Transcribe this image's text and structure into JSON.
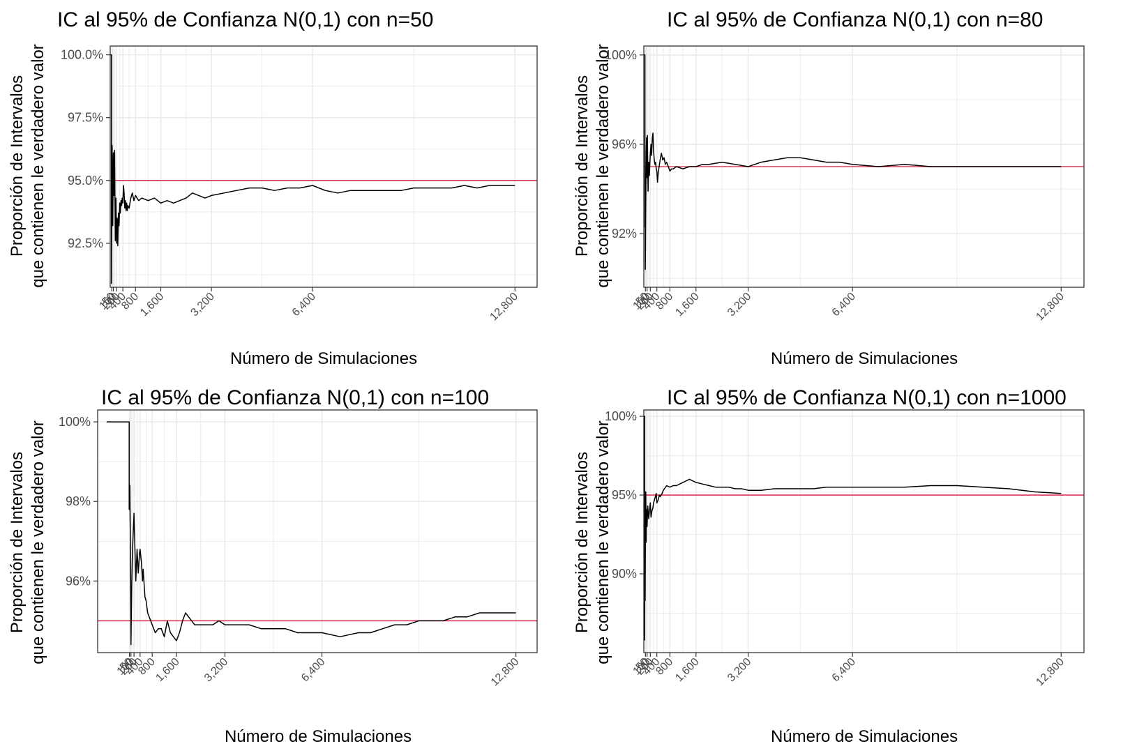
{
  "colors": {
    "line": "#000000",
    "reference": "#E0385C",
    "grid": "#ebebeb",
    "border": "#333333"
  },
  "chart_data": [
    {
      "type": "line",
      "title": "IC al 95% de Confianza N(0,1) con n=50",
      "xlabel": "Número de Simulaciones",
      "ylabel_lines": [
        "Proporción de Intervalos",
        "que contienen le verdadero valor"
      ],
      "xlim": [
        0,
        13500
      ],
      "ylim": [
        90.75,
        100.35
      ],
      "y_ticks": [
        92.5,
        95.0,
        97.5,
        100.0
      ],
      "y_tick_labels": [
        "92.5%",
        "95.0%",
        "97.5%",
        "100.0%"
      ],
      "x_ticks": [
        50,
        100,
        200,
        400,
        800,
        1600,
        3200,
        6400,
        12800
      ],
      "x_tick_labels": [
        "50",
        "100",
        "200",
        "400",
        "800",
        "1,600",
        "3,200",
        "6,400",
        "12,800"
      ],
      "reference_y": 95.0,
      "grid": true,
      "series": [
        {
          "x": [
            1,
            20,
            40,
            40,
            60,
            80,
            100,
            120,
            140,
            160,
            180,
            200,
            220,
            240,
            260,
            280,
            300,
            320,
            340,
            360,
            380,
            400,
            420,
            440,
            460,
            480,
            500,
            520,
            540,
            560,
            600,
            650,
            700,
            750,
            800,
            850,
            900,
            1000,
            1200,
            1400,
            1600,
            1800,
            2000,
            2200,
            2400,
            2600,
            2800,
            3000,
            3200,
            3600,
            4000,
            4400,
            4800,
            5200,
            5600,
            6000,
            6400,
            6800,
            7200,
            7600,
            8000,
            8400,
            8800,
            9200,
            9600,
            10000,
            10400,
            10800,
            11200,
            11600,
            12000,
            12400,
            12800
          ],
          "y": [
            100,
            100,
            100,
            90.9,
            96.4,
            93.2,
            96.1,
            94.4,
            96.2,
            92.6,
            94.3,
            92.5,
            93.5,
            92.4,
            93.7,
            93.2,
            94.1,
            93.7,
            94.2,
            94.0,
            94.3,
            94.1,
            94.8,
            94.5,
            93.9,
            94.2,
            93.8,
            94.1,
            93.8,
            94.0,
            93.9,
            94.3,
            94.5,
            94.2,
            94.4,
            94.3,
            94.2,
            94.3,
            94.2,
            94.3,
            94.1,
            94.2,
            94.1,
            94.2,
            94.3,
            94.5,
            94.4,
            94.3,
            94.4,
            94.5,
            94.6,
            94.7,
            94.7,
            94.6,
            94.7,
            94.7,
            94.8,
            94.6,
            94.5,
            94.6,
            94.6,
            94.6,
            94.6,
            94.6,
            94.7,
            94.7,
            94.7,
            94.7,
            94.8,
            94.7,
            94.8,
            94.8,
            94.8
          ]
        }
      ]
    },
    {
      "type": "line",
      "title": "IC al 95% de Confianza N(0,1) con n=80",
      "xlabel": "Número de Simulaciones",
      "ylabel_lines": [
        "Proporción de Intervalos",
        "que contienen le verdadero valor"
      ],
      "xlim": [
        0,
        13500
      ],
      "ylim": [
        89.6,
        100.4
      ],
      "y_ticks": [
        92,
        96,
        100
      ],
      "y_tick_labels": [
        "92%",
        "96%",
        "100%"
      ],
      "x_ticks": [
        50,
        100,
        200,
        400,
        800,
        1600,
        3200,
        6400,
        12800
      ],
      "x_tick_labels": [
        "50",
        "100",
        "200",
        "400",
        "800",
        "1,600",
        "3,200",
        "6,400",
        "12,800"
      ],
      "reference_y": 95.0,
      "grid": true,
      "series": [
        {
          "x": [
            1,
            20,
            35,
            35,
            40,
            45,
            60,
            75,
            85,
            100,
            110,
            120,
            130,
            150,
            170,
            200,
            220,
            240,
            260,
            280,
            300,
            320,
            340,
            360,
            380,
            400,
            420,
            440,
            460,
            480,
            500,
            540,
            580,
            620,
            660,
            700,
            750,
            800,
            850,
            900,
            1000,
            1200,
            1400,
            1600,
            1800,
            2000,
            2400,
            2800,
            3200,
            3600,
            4000,
            4400,
            4800,
            5200,
            5600,
            6000,
            6400,
            7200,
            8000,
            8800,
            9600,
            10400,
            11200,
            12000,
            12800
          ],
          "y": [
            100,
            100,
            100,
            92.3,
            94.0,
            90.4,
            93.5,
            95.8,
            96.3,
            94.5,
            96.4,
            95.0,
            93.9,
            95.2,
            94.6,
            95.6,
            96.0,
            95.5,
            96.3,
            96.5,
            95.7,
            95.3,
            95.1,
            95.2,
            94.9,
            94.8,
            94.3,
            94.7,
            94.9,
            95.1,
            95.3,
            95.6,
            95.3,
            95.4,
            95.1,
            95.2,
            95.0,
            94.8,
            94.9,
            94.9,
            95.0,
            94.9,
            95.0,
            95.0,
            95.1,
            95.1,
            95.2,
            95.1,
            95.0,
            95.2,
            95.3,
            95.4,
            95.4,
            95.3,
            95.2,
            95.2,
            95.1,
            95.0,
            95.1,
            95.0,
            95.0,
            95.0,
            95.0,
            95.0,
            95.0
          ]
        }
      ]
    },
    {
      "type": "line",
      "title": "IC al 95% de Confianza N(0,1) con n=100",
      "xlabel": "Número de Simulaciones",
      "ylabel_lines": [
        "Proporción de Intervalos",
        "que contienen le verdadero valor"
      ],
      "xlim": [
        -1000,
        13500
      ],
      "ylim": [
        94.2,
        100.3
      ],
      "y_ticks": [
        96,
        98,
        100
      ],
      "y_tick_labels": [
        "96%",
        "98%",
        "100%"
      ],
      "x_ticks": [
        50,
        100,
        200,
        400,
        800,
        1600,
        3200,
        6400,
        12800
      ],
      "x_tick_labels": [
        "50",
        "100",
        "200",
        "400",
        "800",
        "1,600",
        "3,200",
        "6,400",
        "12,800"
      ],
      "reference_y": 95.0,
      "grid": true,
      "series": [
        {
          "x": [
            -700,
            -500,
            -300,
            -100,
            0,
            20,
            40,
            40,
            60,
            80,
            100,
            120,
            150,
            200,
            260,
            300,
            340,
            380,
            400,
            440,
            480,
            500,
            560,
            600,
            650,
            700,
            800,
            900,
            1000,
            1100,
            1200,
            1300,
            1400,
            1500,
            1600,
            1700,
            1800,
            1900,
            2000,
            2100,
            2200,
            2400,
            2600,
            2800,
            3000,
            3200,
            3600,
            4000,
            4400,
            4800,
            5200,
            5600,
            6000,
            6400,
            7000,
            7600,
            8000,
            8400,
            8800,
            9200,
            9600,
            10000,
            10400,
            10800,
            11200,
            11600,
            12000,
            12400,
            12800
          ],
          "y": [
            100,
            100,
            100,
            100,
            100,
            100,
            100,
            97.8,
            98.4,
            97.0,
            94.4,
            95.8,
            96.8,
            97.7,
            96.0,
            96.8,
            96.2,
            96.7,
            96.8,
            96.5,
            96.0,
            96.3,
            95.6,
            95.5,
            95.2,
            95.1,
            94.9,
            94.7,
            94.8,
            94.8,
            94.6,
            95.0,
            94.7,
            94.6,
            94.5,
            94.7,
            95.0,
            95.2,
            95.1,
            95.0,
            94.9,
            94.9,
            94.9,
            94.9,
            95.0,
            94.9,
            94.9,
            94.9,
            94.8,
            94.8,
            94.8,
            94.7,
            94.7,
            94.7,
            94.6,
            94.7,
            94.7,
            94.8,
            94.9,
            94.9,
            95.0,
            95.0,
            95.0,
            95.1,
            95.1,
            95.2,
            95.2,
            95.2,
            95.2
          ]
        }
      ]
    },
    {
      "type": "line",
      "title": "IC al 95% de Confianza N(0,1) con n=1000",
      "xlabel": "Número de Simulaciones",
      "ylabel_lines": [
        "Proporción de Intervalos",
        "que contienen le verdadero valor"
      ],
      "xlim": [
        0,
        13500
      ],
      "ylim": [
        85.0,
        100.4
      ],
      "y_ticks": [
        90,
        95,
        100
      ],
      "y_tick_labels": [
        "90%",
        "95%",
        "100%"
      ],
      "x_ticks": [
        50,
        100,
        200,
        400,
        800,
        1600,
        3200,
        6400,
        12800
      ],
      "x_tick_labels": [
        "50",
        "100",
        "200",
        "400",
        "800",
        "1,600",
        "3,200",
        "6,400",
        "12,800"
      ],
      "reference_y": 95.0,
      "grid": true,
      "series": [
        {
          "x": [
            1,
            20,
            25,
            25,
            30,
            40,
            50,
            60,
            70,
            80,
            100,
            120,
            150,
            200,
            220,
            250,
            280,
            300,
            340,
            380,
            400,
            440,
            480,
            500,
            560,
            600,
            700,
            800,
            900,
            1000,
            1100,
            1200,
            1300,
            1400,
            1500,
            1600,
            1800,
            2000,
            2200,
            2400,
            2600,
            2800,
            3000,
            3200,
            3600,
            4000,
            4400,
            4800,
            5200,
            5600,
            6000,
            6400,
            7200,
            8000,
            8800,
            9600,
            10400,
            11200,
            12000,
            12800
          ],
          "y": [
            100,
            100,
            100,
            85.8,
            93.8,
            88.3,
            93.2,
            95.2,
            92.0,
            94.1,
            93.0,
            94.3,
            93.5,
            94.5,
            93.6,
            94.0,
            94.2,
            94.5,
            94.8,
            95.1,
            94.5,
            94.7,
            95.0,
            94.9,
            95.1,
            95.3,
            95.6,
            95.5,
            95.6,
            95.6,
            95.7,
            95.8,
            95.9,
            96.0,
            95.9,
            95.8,
            95.7,
            95.6,
            95.5,
            95.5,
            95.5,
            95.4,
            95.4,
            95.3,
            95.3,
            95.4,
            95.4,
            95.4,
            95.4,
            95.5,
            95.5,
            95.5,
            95.5,
            95.5,
            95.6,
            95.6,
            95.5,
            95.4,
            95.2,
            95.1
          ]
        }
      ]
    }
  ]
}
